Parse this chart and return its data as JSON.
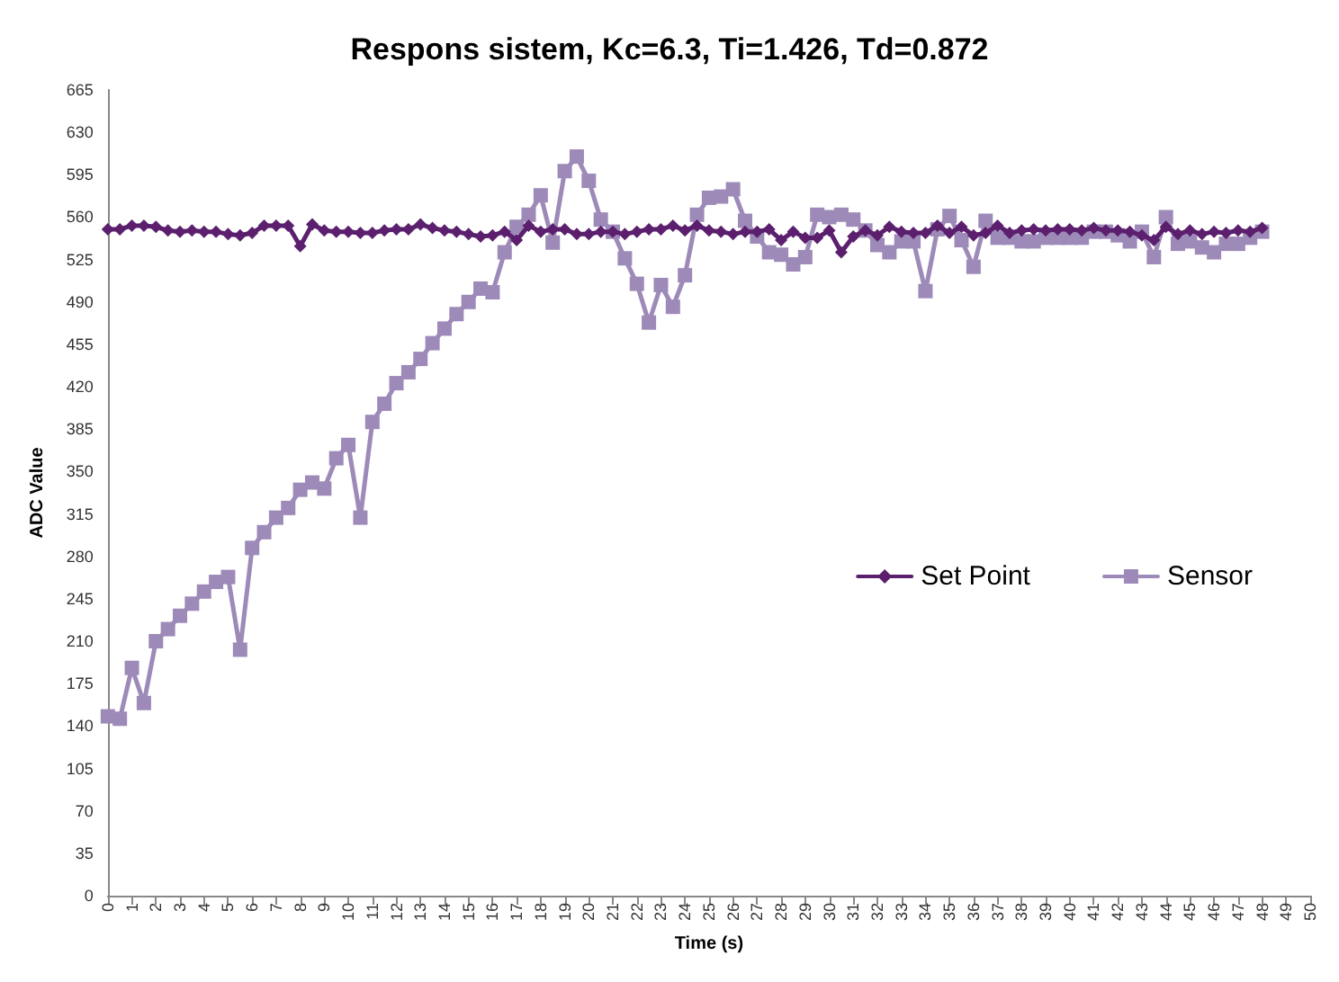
{
  "chart_data": {
    "type": "line",
    "title": "Respons sistem, Kc=6.3, Ti=1.426, Td=0.872",
    "xlabel": "Time (s)",
    "ylabel": "ADC Value",
    "x": [
      0,
      0.5,
      1,
      1.5,
      2,
      2.5,
      3,
      3.5,
      4,
      4.5,
      5,
      5.5,
      6,
      6.5,
      7,
      7.5,
      8,
      8.5,
      9,
      9.5,
      10,
      10.5,
      11,
      11.5,
      12,
      12.5,
      13,
      13.5,
      14,
      14.5,
      15,
      15.5,
      16,
      16.5,
      17,
      17.5,
      18,
      18.5,
      19,
      19.5,
      20,
      20.5,
      21,
      21.5,
      22,
      22.5,
      23,
      23.5,
      24,
      24.5,
      25,
      25.5,
      26,
      26.5,
      27,
      27.5,
      28,
      28.5,
      29,
      29.5,
      30,
      30.5,
      31,
      31.5,
      32,
      32.5,
      33,
      33.5,
      34,
      34.5,
      35,
      35.5,
      36,
      36.5,
      37,
      37.5,
      38,
      38.5,
      39,
      39.5,
      40,
      40.5,
      41,
      41.5,
      42,
      42.5,
      43,
      43.5,
      44,
      44.5,
      45,
      45.5,
      46,
      46.5,
      47,
      47.5,
      48
    ],
    "series": [
      {
        "name": "Set Point",
        "color": "#5b1f6e",
        "marker": "diamond",
        "values": [
          550,
          550,
          553,
          553,
          552,
          549,
          548,
          549,
          548,
          548,
          546,
          545,
          547,
          553,
          553,
          553,
          536,
          554,
          549,
          548,
          548,
          547,
          547,
          549,
          550,
          550,
          554,
          551,
          549,
          548,
          546,
          544,
          545,
          548,
          541,
          553,
          548,
          550,
          550,
          546,
          546,
          548,
          548,
          546,
          548,
          550,
          550,
          553,
          549,
          553,
          549,
          548,
          546,
          548,
          548,
          550,
          541,
          548,
          543,
          543,
          549,
          531,
          544,
          549,
          545,
          552,
          548,
          547,
          547,
          553,
          547,
          552,
          545,
          547,
          553,
          547,
          549,
          550,
          549,
          550,
          550,
          549,
          551,
          549,
          549,
          548,
          545,
          541,
          552,
          546,
          549,
          546,
          548,
          547,
          549,
          548,
          551
        ]
      },
      {
        "name": "Sensor",
        "color": "#9d8ab8",
        "marker": "square",
        "values": [
          148,
          146,
          188,
          159,
          210,
          220,
          231,
          241,
          251,
          259,
          263,
          203,
          287,
          300,
          312,
          320,
          335,
          341,
          336,
          361,
          372,
          312,
          391,
          406,
          423,
          432,
          443,
          456,
          468,
          480,
          490,
          501,
          498,
          531,
          552,
          562,
          578,
          539,
          598,
          610,
          590,
          558,
          548,
          526,
          505,
          473,
          504,
          486,
          512,
          562,
          576,
          577,
          583,
          557,
          544,
          531,
          529,
          521,
          527,
          562,
          560,
          562,
          558,
          549,
          537,
          531,
          540,
          540,
          499,
          550,
          561,
          541,
          519,
          557,
          543,
          543,
          540,
          540,
          543,
          543,
          543,
          543,
          548,
          548,
          545,
          540,
          548,
          527,
          560,
          538,
          540,
          535,
          531,
          538,
          538,
          543,
          548
        ]
      }
    ],
    "xlim": [
      0,
      50
    ],
    "xticks": [
      0,
      1,
      2,
      3,
      4,
      5,
      6,
      7,
      8,
      9,
      10,
      11,
      12,
      13,
      14,
      15,
      16,
      17,
      18,
      19,
      20,
      21,
      22,
      23,
      24,
      25,
      26,
      27,
      28,
      29,
      30,
      31,
      32,
      33,
      34,
      35,
      36,
      37,
      38,
      39,
      40,
      41,
      42,
      43,
      44,
      45,
      46,
      47,
      48,
      49,
      50
    ],
    "ylim": [
      0,
      665
    ],
    "yticks": [
      0,
      35,
      70,
      105,
      140,
      175,
      210,
      245,
      280,
      315,
      350,
      385,
      420,
      455,
      490,
      525,
      560,
      595,
      630,
      665
    ],
    "grid": false,
    "legend": "right",
    "line_style": "solid"
  }
}
